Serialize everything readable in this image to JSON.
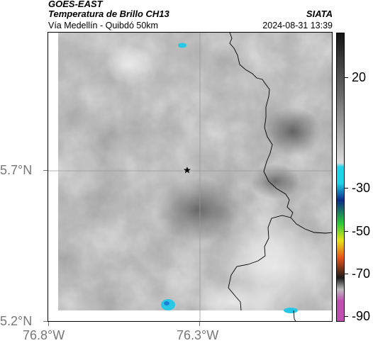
{
  "header": {
    "satellite": "GOES-EAST",
    "product": "Temperatura de Brillo CH13",
    "agency": "SIATA",
    "route": "Vía Medellín - Quibdó 50km",
    "timestamp": "2024-08-31 13:39"
  },
  "map": {
    "lat_ticks": [
      "5.7°N",
      "5.2°N"
    ],
    "lon_ticks": [
      "76.8°W",
      "76.3°W"
    ],
    "marker": "star-marker",
    "colors": {
      "cloud_light": "#e8e8e8",
      "cloud_mid": "#8c8c8c",
      "cloud_dark": "#5a5a5a",
      "cold_top": "#29c7e6",
      "border_line": "#000000"
    }
  },
  "colorbar": {
    "ticks": [
      "20",
      "-30",
      "-50",
      "-70",
      "-90"
    ],
    "colors": [
      "#141414",
      "#6e6e6e",
      "#dcdcdc",
      "#20d3e8",
      "#0b2a8a",
      "#2cc83a",
      "#e6e21a",
      "#e6551b",
      "#1a1a1a",
      "#c04fb2"
    ]
  }
}
